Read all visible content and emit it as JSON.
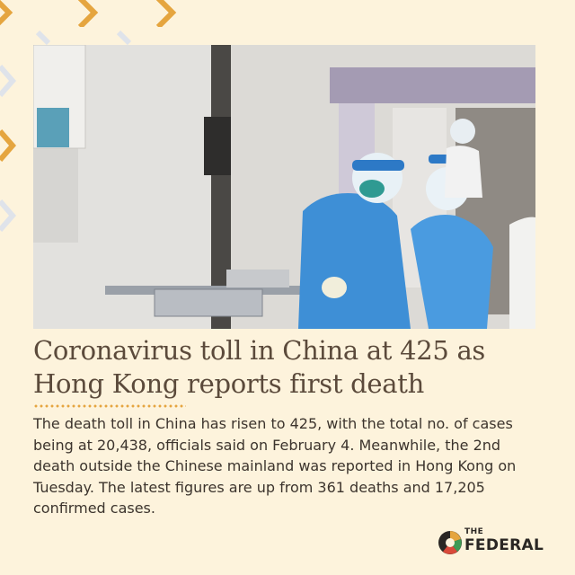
{
  "headline": "Coronavirus toll in China at 425 as Hong Kong reports first death",
  "body": "The death toll in China has risen to 425, with the total no. of cases being at 20,438, officials said on February 4. Meanwhile, the 2nd death outside the Chinese mainland was reported in Hong Kong on Tuesday. The latest figures are up from 361 deaths and 17,205 confirmed cases.",
  "logo": {
    "small": "THE",
    "name": "FEDERAL"
  },
  "photo": {
    "subject": "medical workers in blue protective suits and face shields in a hospital corridor"
  },
  "colors": {
    "background": "#fdf3dc",
    "accent": "#e5a53f",
    "headline": "#5b4a3b",
    "chevron_light": "#dfe3ea"
  },
  "icons": [
    "chevron-right-icon",
    "federal-logo-icon"
  ]
}
